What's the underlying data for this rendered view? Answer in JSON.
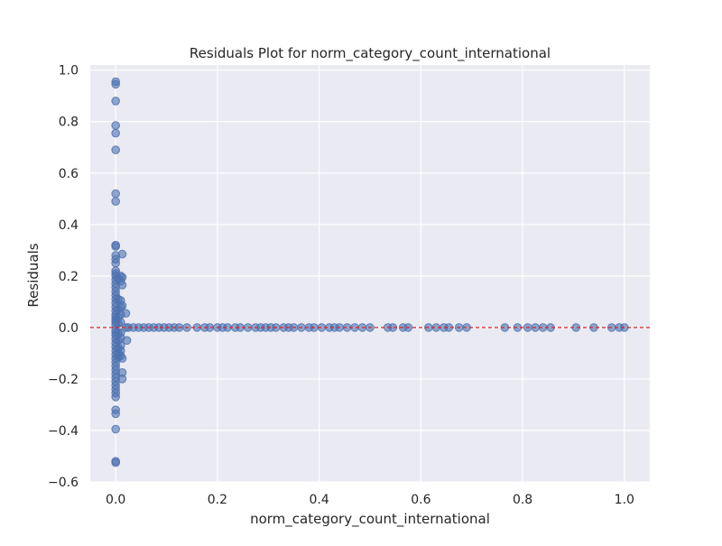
{
  "chart_data": {
    "type": "scatter",
    "title": "Residuals Plot for norm_category_count_international",
    "xlabel": "norm_category_count_international",
    "ylabel": "Residuals",
    "xlim": [
      -0.05,
      1.05
    ],
    "ylim": [
      -0.6,
      1.02
    ],
    "xticks": [
      0.0,
      0.2,
      0.4,
      0.6,
      0.8,
      1.0
    ],
    "xtick_labels": [
      "0.0",
      "0.2",
      "0.4",
      "0.6",
      "0.8",
      "1.0"
    ],
    "yticks": [
      -0.6,
      -0.4,
      -0.2,
      0.0,
      0.2,
      0.4,
      0.6,
      0.8,
      1.0
    ],
    "ytick_labels": [
      "−0.6",
      "−0.4",
      "−0.2",
      "0.0",
      "0.2",
      "0.4",
      "0.6",
      "0.8",
      "1.0"
    ],
    "grid": true,
    "reference_line": {
      "y": 0.0,
      "style": "dashed",
      "color": "#d62728"
    },
    "colors": {
      "background": "#eaeaf2",
      "grid": "#ffffff",
      "points": "#4c72b0"
    },
    "series": [
      {
        "points": [
          [
            0,
            0.955
          ],
          [
            0,
            0.945
          ],
          [
            0,
            0.88
          ],
          [
            0,
            0.785
          ],
          [
            0,
            0.755
          ],
          [
            0,
            0.69
          ],
          [
            0,
            0.52
          ],
          [
            0,
            0.49
          ],
          [
            0,
            0.32
          ],
          [
            0,
            0.315
          ],
          [
            0,
            0.28
          ],
          [
            0,
            0.265
          ],
          [
            0,
            0.25
          ],
          [
            0,
            0.22
          ],
          [
            0,
            0.21
          ],
          [
            0,
            0.2
          ],
          [
            0,
            0.185
          ],
          [
            0,
            0.17
          ],
          [
            0,
            0.155
          ],
          [
            0,
            0.14
          ],
          [
            0,
            0.125
          ],
          [
            0,
            0.11
          ],
          [
            0,
            0.095
          ],
          [
            0,
            0.08
          ],
          [
            0,
            0.065
          ],
          [
            0,
            0.05
          ],
          [
            0,
            0.04
          ],
          [
            0,
            0.03
          ],
          [
            0,
            0.02
          ],
          [
            0,
            0.01
          ],
          [
            0,
            -0.01
          ],
          [
            0,
            -0.02
          ],
          [
            0,
            -0.03
          ],
          [
            0,
            -0.045
          ],
          [
            0,
            -0.06
          ],
          [
            0,
            -0.075
          ],
          [
            0,
            -0.09
          ],
          [
            0,
            -0.105
          ],
          [
            0,
            -0.12
          ],
          [
            0,
            -0.135
          ],
          [
            0,
            -0.15
          ],
          [
            0,
            -0.165
          ],
          [
            0,
            -0.18
          ],
          [
            0,
            -0.195
          ],
          [
            0,
            -0.21
          ],
          [
            0,
            -0.225
          ],
          [
            0,
            -0.24
          ],
          [
            0,
            -0.255
          ],
          [
            0,
            -0.27
          ],
          [
            0,
            -0.32
          ],
          [
            0,
            -0.335
          ],
          [
            0,
            -0.395
          ],
          [
            0,
            -0.52
          ],
          [
            0,
            -0.525
          ],
          [
            0.005,
            0.19
          ],
          [
            0.005,
            0.11
          ],
          [
            0.005,
            0.07
          ],
          [
            0.005,
            0.04
          ],
          [
            0.005,
            0.015
          ],
          [
            0.005,
            -0.02
          ],
          [
            0.005,
            -0.05
          ],
          [
            0.005,
            -0.08
          ],
          [
            0.005,
            -0.1
          ],
          [
            0.005,
            -0.115
          ],
          [
            0.01,
            0.2
          ],
          [
            0.01,
            0.18
          ],
          [
            0.01,
            0.105
          ],
          [
            0.01,
            0.08
          ],
          [
            0.01,
            0.05
          ],
          [
            0.01,
            0.02
          ],
          [
            0.01,
            -0.02
          ],
          [
            0.01,
            -0.04
          ],
          [
            0.01,
            -0.07
          ],
          [
            0.01,
            -0.09
          ],
          [
            0.01,
            -0.11
          ],
          [
            0.013,
            0.285
          ],
          [
            0.013,
            0.195
          ],
          [
            0.013,
            0.165
          ],
          [
            0.013,
            0.085
          ],
          [
            0.013,
            -0.175
          ],
          [
            0.013,
            -0.2
          ],
          [
            0.013,
            -0.12
          ],
          [
            0.02,
            0.055
          ],
          [
            0.02,
            0.0
          ],
          [
            0.022,
            -0.05
          ],
          [
            0.025,
            0.0
          ],
          [
            0.035,
            0.0
          ],
          [
            0.045,
            0.0
          ],
          [
            0.055,
            0.0
          ],
          [
            0.065,
            0.0
          ],
          [
            0.075,
            0.0
          ],
          [
            0.085,
            0.0
          ],
          [
            0.095,
            0.0
          ],
          [
            0.105,
            0.0
          ],
          [
            0.115,
            0.0
          ],
          [
            0.125,
            0.0
          ],
          [
            0.14,
            0.0
          ],
          [
            0.16,
            0.0
          ],
          [
            0.175,
            0.0
          ],
          [
            0.185,
            0.0
          ],
          [
            0.2,
            0.0
          ],
          [
            0.21,
            0.0
          ],
          [
            0.22,
            0.0
          ],
          [
            0.235,
            0.0
          ],
          [
            0.245,
            0.0
          ],
          [
            0.26,
            0.0
          ],
          [
            0.275,
            0.0
          ],
          [
            0.285,
            0.0
          ],
          [
            0.295,
            0.0
          ],
          [
            0.305,
            0.0
          ],
          [
            0.315,
            0.0
          ],
          [
            0.33,
            0.0
          ],
          [
            0.34,
            0.0
          ],
          [
            0.35,
            0.0
          ],
          [
            0.365,
            0.0
          ],
          [
            0.38,
            0.0
          ],
          [
            0.39,
            0.0
          ],
          [
            0.405,
            0.0
          ],
          [
            0.42,
            0.0
          ],
          [
            0.43,
            0.0
          ],
          [
            0.44,
            0.0
          ],
          [
            0.455,
            0.0
          ],
          [
            0.47,
            0.0
          ],
          [
            0.485,
            0.0
          ],
          [
            0.5,
            0.0
          ],
          [
            0.535,
            0.0
          ],
          [
            0.545,
            0.0
          ],
          [
            0.565,
            0.0
          ],
          [
            0.575,
            0.0
          ],
          [
            0.615,
            0.0
          ],
          [
            0.63,
            0.0
          ],
          [
            0.645,
            0.0
          ],
          [
            0.655,
            0.0
          ],
          [
            0.675,
            0.0
          ],
          [
            0.69,
            0.0
          ],
          [
            0.765,
            0.0
          ],
          [
            0.79,
            0.0
          ],
          [
            0.81,
            0.0
          ],
          [
            0.825,
            0.0
          ],
          [
            0.84,
            0.0
          ],
          [
            0.855,
            0.0
          ],
          [
            0.905,
            0.0
          ],
          [
            0.94,
            0.0
          ],
          [
            0.975,
            0.0
          ],
          [
            0.99,
            0.0
          ],
          [
            1.0,
            0.0
          ]
        ]
      }
    ]
  }
}
